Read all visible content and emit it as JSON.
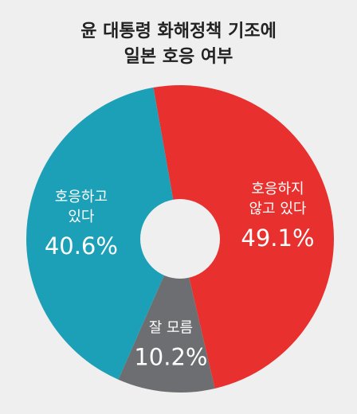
{
  "chart_data": {
    "type": "pie",
    "title": [
      "윤 대통령 화해정책 기조에",
      "일본 호응 여부"
    ],
    "categories": [
      [
        "호응하지",
        "않고 있다"
      ],
      [
        "잘 모름"
      ],
      [
        "호응하고",
        "있다"
      ]
    ],
    "values": [
      49.1,
      10.2,
      40.6
    ],
    "value_labels": [
      "49.1%",
      "10.2%",
      "40.6%"
    ],
    "colors": [
      "#e8302e",
      "#6d6e71",
      "#1ca0b8"
    ]
  }
}
